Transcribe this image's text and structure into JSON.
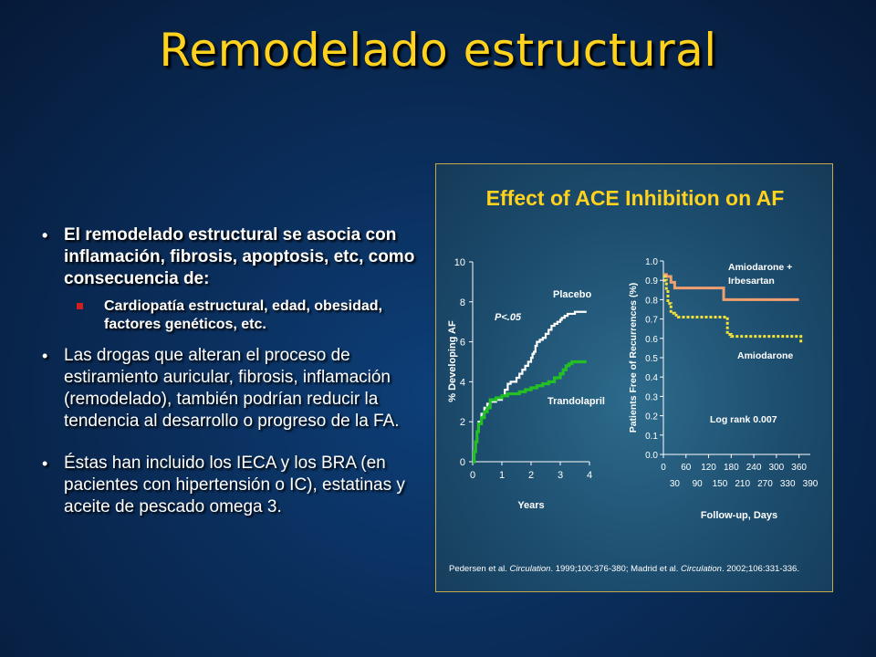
{
  "slide": {
    "title": "Remodelado estructural",
    "bullets": [
      {
        "text": "El remodelado estructural se asocia con inflamación, fibrosis, apoptosis, etc, como consecuencia de:",
        "sub": "Cardiopatía estructural, edad, obesidad, factores genéticos, etc."
      },
      {
        "text": "Las drogas que alteran el proceso de estiramiento auricular, fibrosis, inflamación (remodelado), también podrían reducir la tendencia al desarrollo o progreso de la FA."
      },
      {
        "text": "Éstas han incluido los IECA y los BRA (en pacientes con hipertensión o IC), estatinas y aceite de pescado omega 3."
      }
    ]
  },
  "figure": {
    "title": "Effect of ACE Inhibition on AF",
    "citation_prefix": "Pedersen et al. ",
    "citation_j1": "Circulation",
    "citation_mid": ". 1999;100:376-380; Madrid et al. ",
    "citation_j2": "Circulation",
    "citation_end": ". 2002;106:331-336."
  },
  "chart_data": [
    {
      "type": "line",
      "title": "",
      "xlabel": "Years",
      "ylabel": "% Developing AF",
      "xlim": [
        0,
        4
      ],
      "ylim": [
        0,
        10
      ],
      "xticks": [
        0,
        1,
        2,
        3,
        4
      ],
      "yticks": [
        0,
        2,
        4,
        6,
        8,
        10
      ],
      "annotation": "P<.05",
      "series": [
        {
          "name": "Placebo",
          "color": "#ffffff",
          "step": true,
          "x": [
            0,
            0.05,
            0.1,
            0.15,
            0.2,
            0.3,
            0.4,
            0.5,
            0.6,
            0.8,
            1.0,
            1.1,
            1.2,
            1.3,
            1.5,
            1.6,
            1.7,
            1.8,
            1.9,
            2.0,
            2.05,
            2.1,
            2.15,
            2.2,
            2.3,
            2.4,
            2.5,
            2.6,
            2.7,
            2.8,
            2.9,
            3.0,
            3.05,
            3.1,
            3.15,
            3.2,
            3.25,
            3.3,
            3.4,
            3.5,
            3.6,
            3.8,
            3.9
          ],
          "y": [
            0,
            0.5,
            1.0,
            1.5,
            2.0,
            2.4,
            2.7,
            2.9,
            3.0,
            3.1,
            3.3,
            3.6,
            3.9,
            4.0,
            4.2,
            4.4,
            4.6,
            4.8,
            5.0,
            5.2,
            5.4,
            5.5,
            5.8,
            6.0,
            6.1,
            6.2,
            6.4,
            6.6,
            6.8,
            6.9,
            7.0,
            7.1,
            7.2,
            7.2,
            7.3,
            7.3,
            7.4,
            7.4,
            7.4,
            7.5,
            7.5,
            7.5,
            7.5
          ]
        },
        {
          "name": "Trandolapril",
          "color": "#22c024",
          "step": true,
          "x": [
            0,
            0.05,
            0.1,
            0.15,
            0.2,
            0.3,
            0.4,
            0.5,
            0.6,
            0.8,
            1.0,
            1.2,
            1.4,
            1.6,
            1.8,
            2.0,
            2.2,
            2.4,
            2.6,
            2.8,
            3.0,
            3.1,
            3.2,
            3.3,
            3.4,
            3.5,
            3.6,
            3.8,
            3.9
          ],
          "y": [
            0,
            0.5,
            1.0,
            1.5,
            1.9,
            2.2,
            2.5,
            2.7,
            3.1,
            3.2,
            3.3,
            3.4,
            3.4,
            3.5,
            3.6,
            3.7,
            3.8,
            3.9,
            4.0,
            4.2,
            4.4,
            4.6,
            4.8,
            4.9,
            5.0,
            5.0,
            5.0,
            5.0,
            5.0
          ]
        }
      ]
    },
    {
      "type": "line",
      "title": "",
      "xlabel": "Follow-up, Days",
      "ylabel": "Patients Free of Recurrences (%)",
      "xlim": [
        0,
        390
      ],
      "ylim": [
        0,
        1.0
      ],
      "xticks_top": [
        0,
        60,
        120,
        180,
        240,
        300,
        360
      ],
      "xticks_bottom": [
        30,
        90,
        150,
        210,
        270,
        330,
        390
      ],
      "yticks": [
        0.0,
        0.1,
        0.2,
        0.3,
        0.4,
        0.5,
        0.6,
        0.7,
        0.8,
        0.9,
        1.0
      ],
      "annotation": "Log rank 0.007",
      "series": [
        {
          "name": "Amiodarone + Irbesartan",
          "color": "#f0a070",
          "step": true,
          "x": [
            0,
            8,
            20,
            30,
            160,
            360
          ],
          "y": [
            0.93,
            0.92,
            0.89,
            0.86,
            0.8,
            0.8
          ]
        },
        {
          "name": "Amiodarone",
          "color": "#f2e23a",
          "dashed": true,
          "step": true,
          "x": [
            0,
            5,
            8,
            12,
            20,
            30,
            40,
            170,
            180,
            360,
            365
          ],
          "y": [
            0.92,
            0.9,
            0.85,
            0.78,
            0.73,
            0.72,
            0.71,
            0.62,
            0.61,
            0.61,
            0.57
          ]
        }
      ]
    }
  ]
}
